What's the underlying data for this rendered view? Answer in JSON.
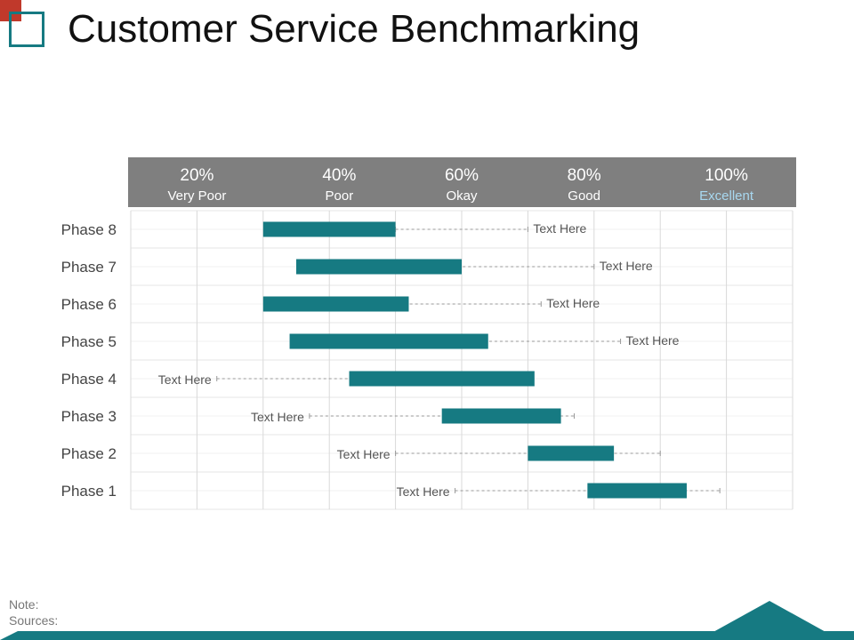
{
  "title": "Customer Service Benchmarking",
  "colors": {
    "accent": "#167a82",
    "header_bg": "#7f7f7f",
    "logo_red": "#c0392b",
    "excellent_label": "#a8d8f0",
    "bar": "#167a82"
  },
  "chart_data": {
    "type": "bar",
    "orientation": "horizontal-range",
    "title": "Customer Service Benchmarking",
    "header_scale": [
      {
        "pct": "20%",
        "label": "Very Poor"
      },
      {
        "pct": "40%",
        "label": "Poor"
      },
      {
        "pct": "60%",
        "label": "Okay"
      },
      {
        "pct": "80%",
        "label": "Good"
      },
      {
        "pct": "100%",
        "label": "Excellent"
      }
    ],
    "categories": [
      "Phase 8",
      "Phase 7",
      "Phase 6",
      "Phase 5",
      "Phase 4",
      "Phase 3",
      "Phase 2",
      "Phase 1"
    ],
    "xlim": [
      0,
      100
    ],
    "bars": [
      {
        "phase": "Phase 8",
        "start": 20,
        "end": 40,
        "note": "Text Here",
        "note_side": "right",
        "dash_from": 40,
        "dash_to": 60
      },
      {
        "phase": "Phase 7",
        "start": 25,
        "end": 50,
        "note": "Text Here",
        "note_side": "right",
        "dash_from": 30,
        "dash_to": 70
      },
      {
        "phase": "Phase 6",
        "start": 20,
        "end": 42,
        "note": "Text Here",
        "note_side": "right",
        "dash_from": 22,
        "dash_to": 62
      },
      {
        "phase": "Phase 5",
        "start": 24,
        "end": 54,
        "note": "Text Here",
        "note_side": "right",
        "dash_from": 34,
        "dash_to": 74
      },
      {
        "phase": "Phase 4",
        "start": 33,
        "end": 61,
        "note": "Text Here",
        "note_side": "left",
        "dash_from": 13,
        "dash_to": 53
      },
      {
        "phase": "Phase 3",
        "start": 47,
        "end": 65,
        "note": "Text Here",
        "note_side": "left",
        "dash_from": 27,
        "dash_to": 67
      },
      {
        "phase": "Phase 2",
        "start": 60,
        "end": 73,
        "note": "Text Here",
        "note_side": "left",
        "dash_from": 40,
        "dash_to": 80
      },
      {
        "phase": "Phase 1",
        "start": 69,
        "end": 84,
        "note": "Text Here",
        "note_side": "left",
        "dash_from": 49,
        "dash_to": 89
      }
    ]
  },
  "footer": {
    "note_label": "Note:",
    "sources_label": "Sources:"
  }
}
